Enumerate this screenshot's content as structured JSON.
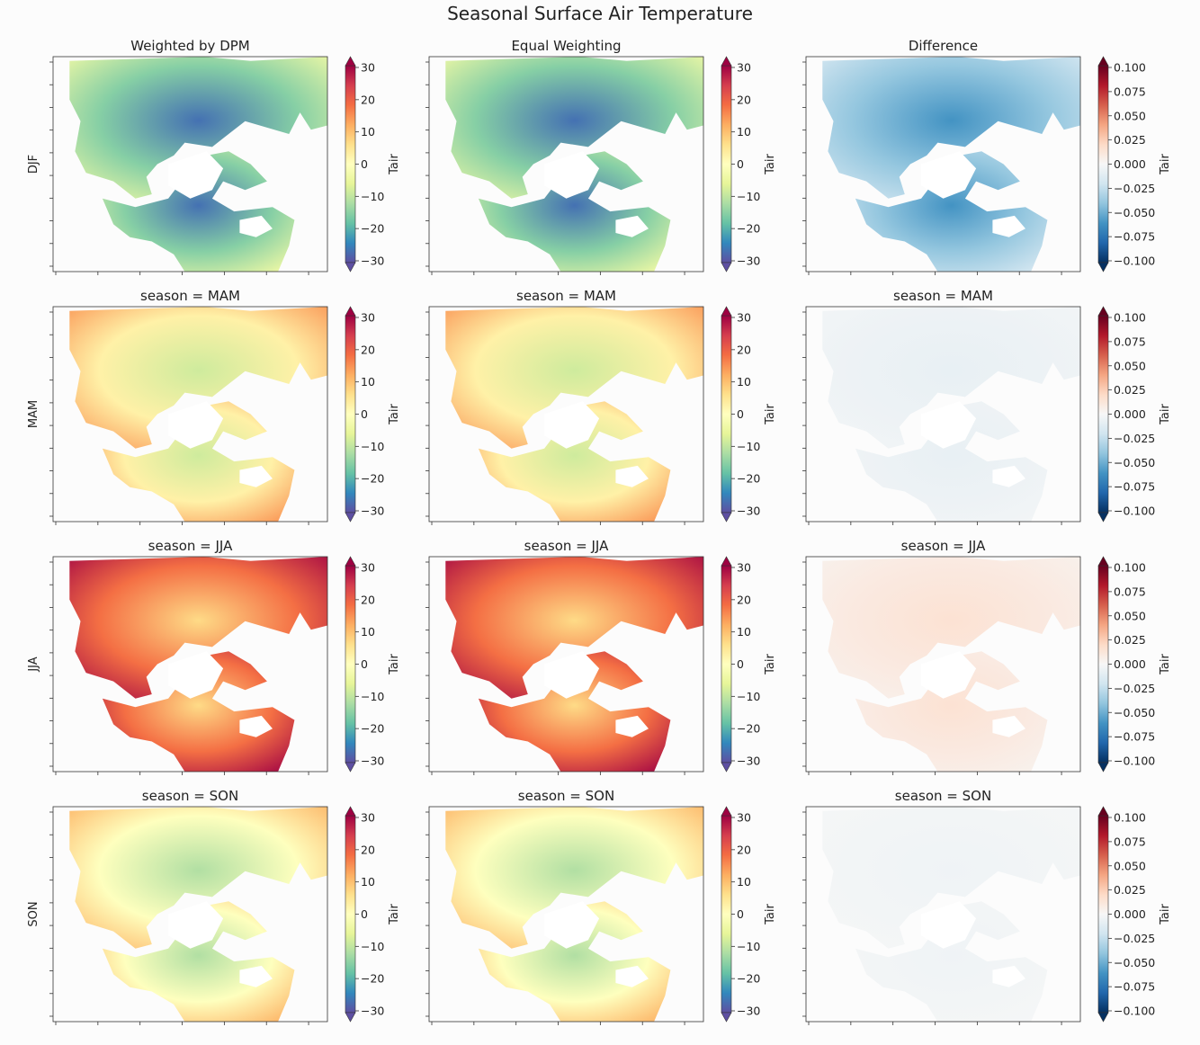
{
  "figure": {
    "title": "Seasonal Surface Air Temperature",
    "colors": {
      "background": "#fcfcfc",
      "spectral_cmap": [
        "#5e4fa2",
        "#3288bd",
        "#66c2a5",
        "#abdda4",
        "#e6f598",
        "#ffffbf",
        "#fee08b",
        "#fdae61",
        "#f46d43",
        "#d53e4f",
        "#9e0142"
      ],
      "rdbu_cmap": [
        "#053061",
        "#2166ac",
        "#4393c3",
        "#92c5de",
        "#d1e5f0",
        "#f7f7f7",
        "#fddbc7",
        "#f4a582",
        "#d6604d",
        "#b2182b",
        "#67001f"
      ]
    }
  },
  "chart_data": {
    "type": "heatmap",
    "layout": "4 rows x 3 columns of map panels",
    "column_titles": [
      "Weighted by DPM",
      "Equal Weighting",
      "Difference"
    ],
    "row_labels": [
      "DJF",
      "MAM",
      "JJA",
      "SON"
    ],
    "season_titles": [
      "season = MAM",
      "season = JJA",
      "season = SON"
    ],
    "colorbar_label": "Tair",
    "temperature_colorbar": {
      "cmap": "Spectral_r",
      "range": [
        -30,
        30
      ],
      "ticks": [
        "30",
        "20",
        "10",
        "0",
        "−10",
        "−20",
        "−30"
      ],
      "extend": "both"
    },
    "difference_colorbar": {
      "cmap": "RdBu_r",
      "range": [
        -0.1,
        0.1
      ],
      "ticks": [
        "0.100",
        "0.075",
        "0.050",
        "0.025",
        "0.000",
        "−0.025",
        "−0.050",
        "−0.075",
        "−0.100"
      ],
      "extend": "both"
    },
    "panel_mean_tair": {
      "DJF": [
        -18,
        -18,
        -0.06
      ],
      "MAM": [
        0,
        0,
        -0.008
      ],
      "JJA": [
        15,
        15,
        0.015
      ],
      "SON": [
        -3,
        -3,
        -0.004
      ]
    }
  }
}
